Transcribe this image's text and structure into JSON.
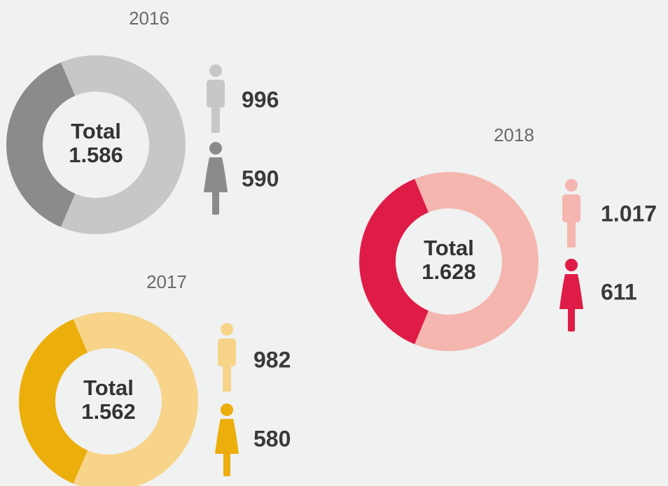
{
  "chart_data": [
    {
      "type": "pie",
      "title": "2016",
      "center_label": "Total",
      "total": {
        "value": 1586,
        "label": "1.586"
      },
      "values": [
        996,
        590
      ],
      "colors": [
        "#c6c7c8",
        "#8a8b8c"
      ]
    },
    {
      "type": "pie",
      "title": "2017",
      "center_label": "Total",
      "total": {
        "value": 1562,
        "label": "1.562"
      },
      "values": [
        982,
        580
      ],
      "colors": [
        "#f7d48a",
        "#ecae0b"
      ]
    },
    {
      "type": "pie",
      "title": "2018",
      "center_label": "Total",
      "total": {
        "value": 1628,
        "label": "1.628"
      },
      "values": [
        1017,
        611
      ],
      "value_labels": [
        "1.017",
        "611"
      ],
      "colors": [
        "#f4b6ae",
        "#df1c47"
      ]
    }
  ]
}
